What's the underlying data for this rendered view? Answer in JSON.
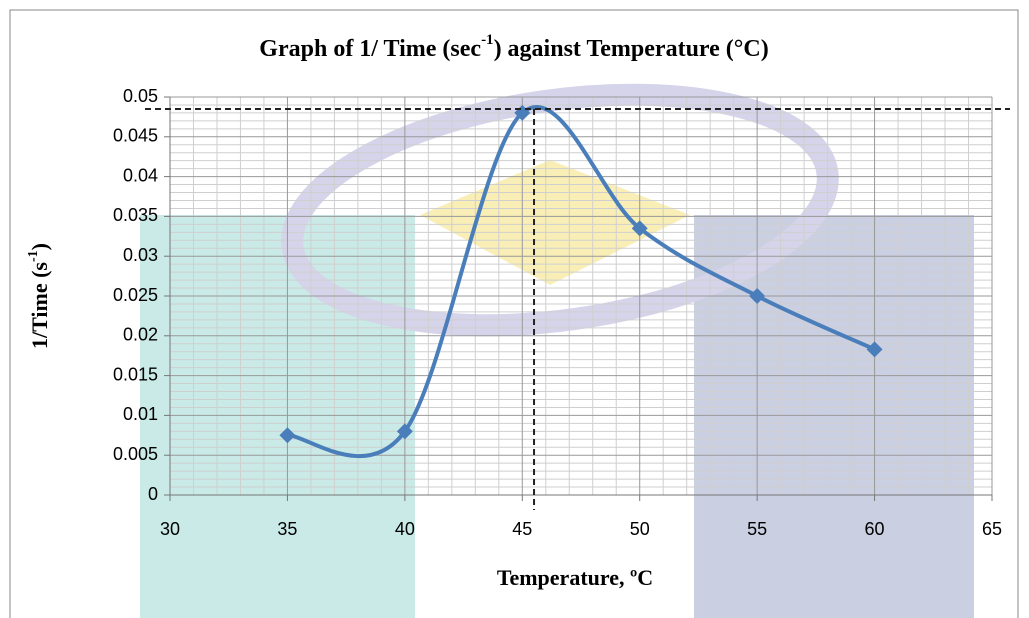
{
  "chart_data": {
    "type": "scatter",
    "title": [
      "Graph of 1/ Time (sec",
      "-1",
      ") against Temperature (°C)"
    ],
    "x_label": "Temperature, ºC",
    "y_label": [
      "1/Time (s",
      "-1",
      ")"
    ],
    "x": [
      35,
      40,
      45,
      50,
      55,
      60
    ],
    "series": [
      {
        "color": "#4a7ebb",
        "values": [
          0.0075,
          0.008,
          0.048,
          0.0335,
          0.025,
          0.0183
        ]
      }
    ],
    "xlim": [
      30,
      65
    ],
    "xticks": [
      30,
      35,
      40,
      45,
      50,
      55,
      60,
      65
    ],
    "ylim": [
      0,
      0.05
    ],
    "yticks": [
      0,
      0.005,
      0.01,
      0.015,
      0.02,
      0.025,
      0.03,
      0.035,
      0.04,
      0.045,
      0.05
    ],
    "grid": true,
    "smooth": true,
    "reference_lines": {
      "x": 45.5,
      "y": 0.0485
    }
  }
}
